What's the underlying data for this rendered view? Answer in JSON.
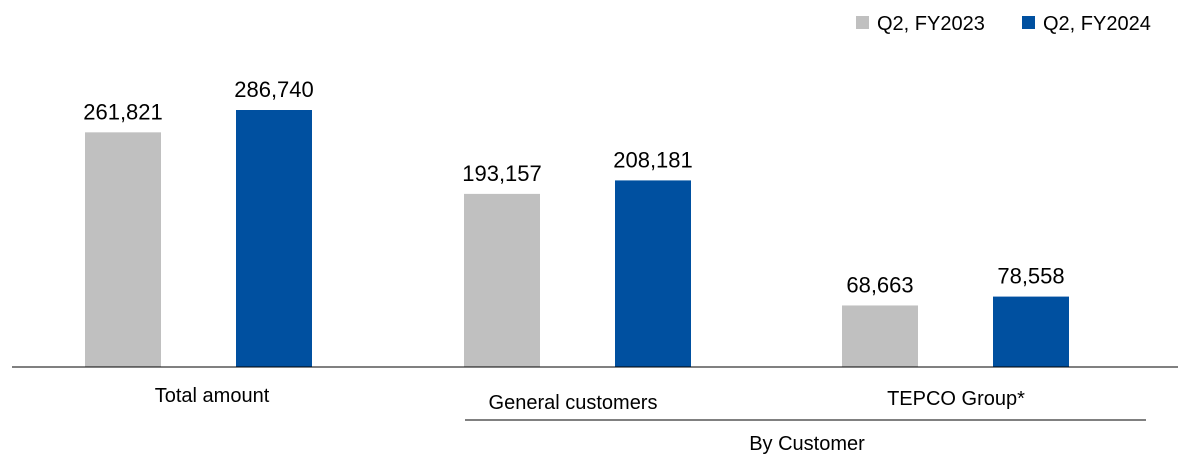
{
  "chart_data": {
    "type": "bar",
    "categories": [
      "Total amount",
      "General customers",
      "TEPCO Group*"
    ],
    "group_label": "By Customer",
    "series": [
      {
        "name": "Q2, FY2023",
        "color": "#C0C0C0",
        "values": [
          261821,
          193157,
          68663
        ],
        "labels": [
          "261,821",
          "193,157",
          "68,663"
        ]
      },
      {
        "name": "Q2, FY2024",
        "color": "#0050A0",
        "values": [
          286740,
          208181,
          78558
        ],
        "labels": [
          "286,740",
          "208,181",
          "78,558"
        ]
      }
    ],
    "ylim": [
      0,
      300000
    ],
    "grid": false,
    "legend_position": "top-right",
    "title": "",
    "xlabel": "",
    "ylabel": ""
  }
}
